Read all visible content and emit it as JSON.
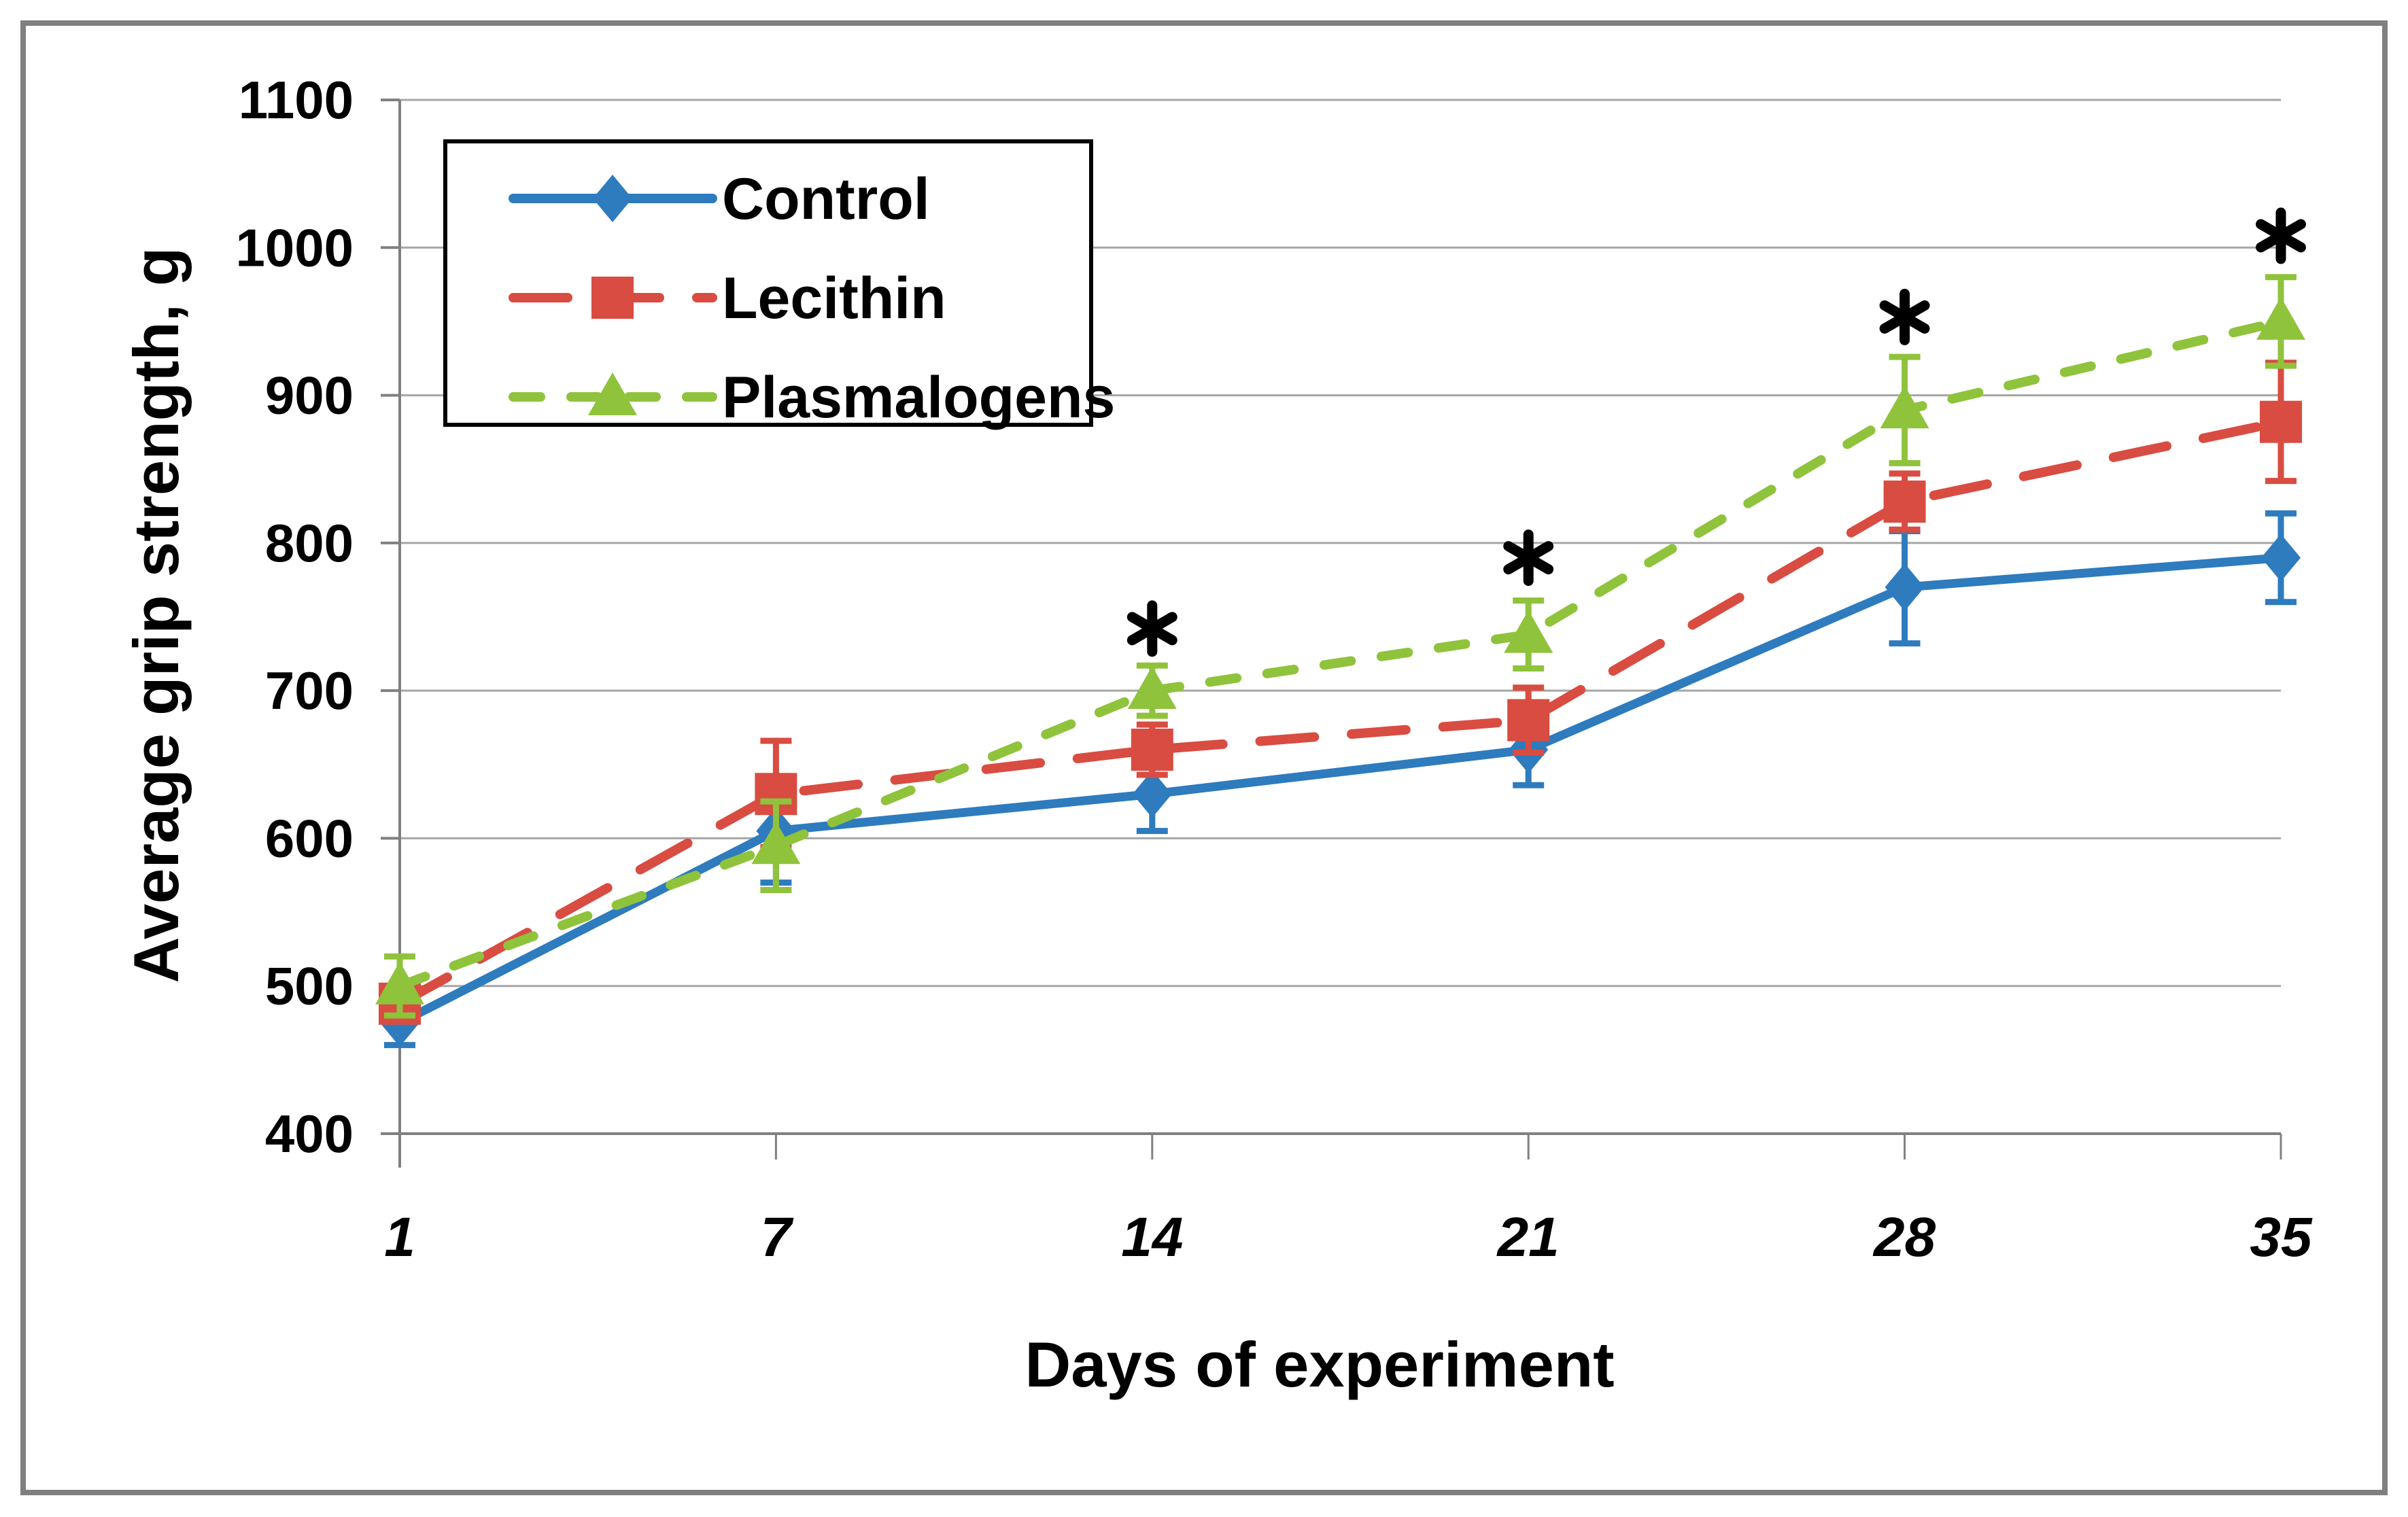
{
  "frame": {
    "background": "#FFFFFF",
    "border_color": "#7F7F7F"
  },
  "chart_data": {
    "type": "line",
    "title": "",
    "xlabel": "Days of experiment",
    "ylabel": "Average grip strength, g",
    "x_categories": [
      1,
      7,
      14,
      21,
      28,
      35
    ],
    "x_tick_labels": [
      "1",
      "7",
      "14",
      "21",
      "28",
      "35"
    ],
    "y_axis": {
      "min": 400,
      "max": 1100,
      "step": 100,
      "tick_labels_top_to_bottom": [
        "1100",
        "1000",
        "900",
        "800",
        "700",
        "600",
        "500",
        "400"
      ]
    },
    "grid": true,
    "gridline_color": "#A6A6A6",
    "axis_color": "#808080",
    "text_color": "#000000",
    "legend": {
      "position": "top-left",
      "items": [
        "Control",
        "Lecithin",
        "Plasmalogens"
      ]
    },
    "series": [
      {
        "name": "Control",
        "color": "#2E7BBE",
        "marker": "diamond",
        "line_style": "solid",
        "values": [
          475,
          605,
          630,
          660,
          770,
          790
        ],
        "error": [
          15,
          35,
          25,
          24,
          38,
          30
        ]
      },
      {
        "name": "Lecithin",
        "color": "#D94C41",
        "marker": "square",
        "line_style": "long-dash",
        "values": [
          488,
          630,
          660,
          680,
          828,
          882
        ],
        "error": [
          12,
          36,
          17,
          22,
          19,
          40
        ]
      },
      {
        "name": "Plasmalogens",
        "color": "#8FC33C",
        "marker": "triangle",
        "line_style": "short-dash",
        "values": [
          500,
          595,
          700,
          738,
          890,
          950
        ],
        "error": [
          20,
          30,
          17,
          23,
          36,
          30
        ]
      }
    ],
    "annotations": {
      "symbol": "*",
      "color": "#000000",
      "above_series": "Plasmalogens",
      "days": [
        14,
        21,
        28,
        35
      ],
      "y_positions": [
        742,
        790,
        953,
        1008
      ]
    }
  }
}
